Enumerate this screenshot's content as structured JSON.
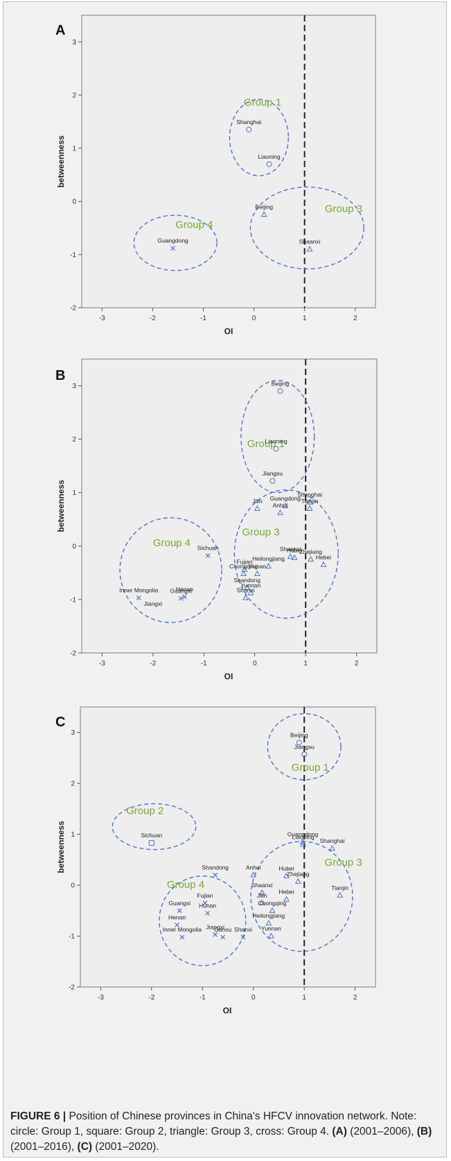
{
  "chart_data": [
    {
      "type": "scatter",
      "panel_label": "A",
      "xlabel": "OI",
      "ylabel": "betweenness",
      "xlim": [
        -3.4,
        2.4
      ],
      "ylim": [
        -2,
        3.5
      ],
      "x_ticks": [
        -3,
        -2,
        -1,
        0,
        1,
        2
      ],
      "y_ticks": [
        -2,
        -1,
        0,
        1,
        2,
        3
      ],
      "reference_line_x": 1,
      "points": [
        {
          "label": "Shanghai",
          "x": -0.1,
          "y": 1.35,
          "marker": "circle"
        },
        {
          "label": "Liaoning",
          "x": 0.3,
          "y": 0.7,
          "marker": "circle"
        },
        {
          "label": "Beijing",
          "x": 0.2,
          "y": -0.25,
          "marker": "triangle"
        },
        {
          "label": "Shaanxi",
          "x": 1.1,
          "y": -0.9,
          "marker": "triangle"
        },
        {
          "label": "Guangdong",
          "x": -1.6,
          "y": -0.88,
          "marker": "cross"
        }
      ],
      "groups": [
        {
          "label": "Group 1",
          "cx": 0.1,
          "cy": 1.2,
          "rx": 0.58,
          "ry": 0.72,
          "label_x": -0.2,
          "label_y": 1.8
        },
        {
          "label": "Group 3",
          "cx": 1.05,
          "cy": -0.5,
          "rx": 1.12,
          "ry": 0.77,
          "label_x": 1.4,
          "label_y": -0.2
        },
        {
          "label": "Group 4",
          "cx": -1.55,
          "cy": -0.78,
          "rx": 0.82,
          "ry": 0.52,
          "label_x": -1.55,
          "label_y": -0.5
        }
      ]
    },
    {
      "type": "scatter",
      "panel_label": "B",
      "xlabel": "OI",
      "ylabel": "betweenness",
      "xlim": [
        -3.4,
        2.4
      ],
      "ylim": [
        -2,
        3.5
      ],
      "x_ticks": [
        -3,
        -2,
        -1,
        0,
        1,
        2
      ],
      "y_ticks": [
        -2,
        -1,
        0,
        1,
        2,
        3
      ],
      "reference_line_x": 1,
      "points": [
        {
          "label": "Beijing",
          "x": 0.5,
          "y": 2.9,
          "marker": "circle"
        },
        {
          "label": "Liaoning",
          "x": 0.42,
          "y": 1.82,
          "marker": "circle"
        },
        {
          "label": "Jiangsu",
          "x": 0.35,
          "y": 1.22,
          "marker": "circle"
        },
        {
          "label": "Guangdong",
          "x": 0.6,
          "y": 0.75,
          "marker": "triangle"
        },
        {
          "label": "Jilin",
          "x": 0.05,
          "y": 0.7,
          "marker": "triangle"
        },
        {
          "label": "Anhui",
          "x": 0.5,
          "y": 0.62,
          "marker": "triangle"
        },
        {
          "label": "Shanghai",
          "x": 1.08,
          "y": 0.82,
          "marker": "triangle"
        },
        {
          "label": "Tianjin",
          "x": 1.08,
          "y": 0.7,
          "marker": "triangle"
        },
        {
          "label": "Heilongjiang",
          "x": 0.27,
          "y": -0.38,
          "marker": "triangle"
        },
        {
          "label": "Shaanxi",
          "x": 0.7,
          "y": -0.2,
          "marker": "triangle"
        },
        {
          "label": "Hubei",
          "x": 0.78,
          "y": -0.22,
          "marker": "triangle"
        },
        {
          "label": "Zhejiang",
          "x": 1.1,
          "y": -0.25,
          "marker": "triangle"
        },
        {
          "label": "Hebei",
          "x": 1.35,
          "y": -0.35,
          "marker": "triangle"
        },
        {
          "label": "Fujian",
          "x": -0.2,
          "y": -0.44,
          "marker": "triangle"
        },
        {
          "label": "Chongqing",
          "x": -0.22,
          "y": -0.52,
          "marker": "triangle"
        },
        {
          "label": "Hunan",
          "x": 0.05,
          "y": -0.52,
          "marker": "triangle"
        },
        {
          "label": "Shandong",
          "x": -0.15,
          "y": -0.78,
          "marker": "triangle"
        },
        {
          "label": "Shanxi",
          "x": -0.18,
          "y": -0.97,
          "marker": "triangle"
        },
        {
          "label": "Yunnan",
          "x": -0.08,
          "y": -0.88,
          "marker": "triangle"
        },
        {
          "label": "Sichuan",
          "x": -0.92,
          "y": -0.18,
          "marker": "cross"
        },
        {
          "label": "Henan",
          "x": -1.38,
          "y": -0.95,
          "marker": "cross"
        },
        {
          "label": "Guangxi",
          "x": -1.45,
          "y": -0.98,
          "marker": "cross"
        },
        {
          "label": "Inner Mongolia",
          "x": -2.28,
          "y": -0.97,
          "marker": "cross"
        }
      ],
      "groups": [
        {
          "label": "Group 1",
          "cx": 0.45,
          "cy": 2.05,
          "rx": 0.72,
          "ry": 1.05,
          "label_x": -0.15,
          "label_y": 1.85
        },
        {
          "label": "Group 3",
          "cx": 0.62,
          "cy": -0.15,
          "rx": 1.02,
          "ry": 1.2,
          "label_x": -0.25,
          "label_y": 0.2
        },
        {
          "label": "Group 4",
          "cx": -1.65,
          "cy": -0.45,
          "rx": 1.0,
          "ry": 0.98,
          "label_x": -2.0,
          "label_y": 0.0
        }
      ],
      "extra_text": [
        {
          "text": "Jiangxi",
          "x": -2.0,
          "y": -1.12
        }
      ]
    },
    {
      "type": "scatter",
      "panel_label": "C",
      "xlabel": "OI",
      "ylabel": "betweenness",
      "xlim": [
        -3.4,
        2.4
      ],
      "ylim": [
        -2,
        3.5
      ],
      "x_ticks": [
        -3,
        -2,
        -1,
        0,
        1,
        2
      ],
      "y_ticks": [
        -2,
        -1,
        0,
        1,
        2,
        3
      ],
      "reference_line_x": 1,
      "points": [
        {
          "label": "Beijing",
          "x": 0.9,
          "y": 2.8,
          "marker": "circle"
        },
        {
          "label": "Jiangsu",
          "x": 1.0,
          "y": 2.57,
          "marker": "circle"
        },
        {
          "label": "Sichuan",
          "x": -2.0,
          "y": 0.83,
          "marker": "square"
        },
        {
          "label": "Guangdong",
          "x": 0.97,
          "y": 0.85,
          "marker": "triangle"
        },
        {
          "label": "Liaoning",
          "x": 0.98,
          "y": 0.8,
          "marker": "triangle"
        },
        {
          "label": "Shanghai",
          "x": 1.55,
          "y": 0.72,
          "marker": "triangle"
        },
        {
          "label": "Tianjin",
          "x": 1.7,
          "y": -0.2,
          "marker": "triangle"
        },
        {
          "label": "Anhui",
          "x": 0.0,
          "y": 0.2,
          "marker": "triangle"
        },
        {
          "label": "Hubei",
          "x": 0.65,
          "y": 0.18,
          "marker": "triangle"
        },
        {
          "label": "Zhejiang",
          "x": 0.88,
          "y": 0.07,
          "marker": "triangle"
        },
        {
          "label": "Shaanxi",
          "x": 0.17,
          "y": -0.15,
          "marker": "triangle"
        },
        {
          "label": "Hebei",
          "x": 0.65,
          "y": -0.28,
          "marker": "triangle"
        },
        {
          "label": "Jilin",
          "x": 0.17,
          "y": -0.35,
          "marker": "triangle"
        },
        {
          "label": "Chongqing",
          "x": 0.37,
          "y": -0.5,
          "marker": "triangle"
        },
        {
          "label": "Heilongjiang",
          "x": 0.3,
          "y": -0.75,
          "marker": "triangle"
        },
        {
          "label": "Yunnan",
          "x": 0.35,
          "y": -1.0,
          "marker": "triangle"
        },
        {
          "label": "Shandong",
          "x": -0.75,
          "y": 0.2,
          "marker": "cross"
        },
        {
          "label": "Fujian",
          "x": -0.95,
          "y": -0.35,
          "marker": "cross"
        },
        {
          "label": "Hunan",
          "x": -0.9,
          "y": -0.55,
          "marker": "cross"
        },
        {
          "label": "Guangxi",
          "x": -1.45,
          "y": -0.5,
          "marker": "cross"
        },
        {
          "label": "Henan",
          "x": -1.5,
          "y": -0.78,
          "marker": "cross"
        },
        {
          "label": "Inner Mongolia",
          "x": -1.4,
          "y": -1.02,
          "marker": "cross"
        },
        {
          "label": "Jiangxi",
          "x": -0.75,
          "y": -0.97,
          "marker": "cross"
        },
        {
          "label": "Gansu",
          "x": -0.6,
          "y": -1.02,
          "marker": "cross"
        },
        {
          "label": "Shanxi",
          "x": -0.2,
          "y": -1.02,
          "marker": "cross"
        }
      ],
      "groups": [
        {
          "label": "Group 1",
          "cx": 1.0,
          "cy": 2.72,
          "rx": 0.72,
          "ry": 0.65,
          "label_x": 0.75,
          "label_y": 2.25
        },
        {
          "label": "Group 2",
          "cx": -1.95,
          "cy": 1.15,
          "rx": 0.82,
          "ry": 0.45,
          "label_x": -2.5,
          "label_y": 1.4
        },
        {
          "label": "Group 3",
          "cx": 0.95,
          "cy": -0.22,
          "rx": 1.0,
          "ry": 1.08,
          "label_x": 1.4,
          "label_y": 0.38
        },
        {
          "label": "Group 4",
          "cx": -1.0,
          "cy": -0.7,
          "rx": 0.85,
          "ry": 0.88,
          "label_x": -1.7,
          "label_y": -0.05
        }
      ]
    }
  ],
  "caption": {
    "figure_label": "FIGURE 6 |",
    "text": " Position of Chinese provinces in China's HFCV innovation network. Note: circle: Group 1, square: Group 2, triangle: Group 3, cross: Group 4. ",
    "a_label": "(A)",
    "a_text": " (2001–2006), ",
    "b_label": "(B)",
    "b_text": " (2001–2016), ",
    "c_label": "(C)",
    "c_text": " (2001–2020)."
  }
}
